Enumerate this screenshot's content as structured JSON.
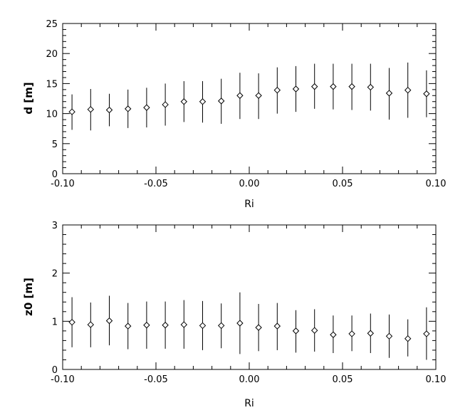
{
  "chart_data": [
    {
      "type": "scatter",
      "marker": "diamond",
      "errorbars": true,
      "xlabel": "Ri",
      "ylabel": "d [m]",
      "xlim": [
        -0.1,
        0.1
      ],
      "ylim": [
        0,
        25
      ],
      "xticks": [
        -0.1,
        -0.05,
        0.0,
        0.05,
        0.1
      ],
      "xtick_labels": [
        "-0.10",
        "-0.05",
        "0.00",
        "0.05",
        "0.10"
      ],
      "yticks": [
        0,
        5,
        10,
        15,
        20,
        25
      ],
      "ytick_labels": [
        "0",
        "5",
        "10",
        "15",
        "20",
        "25"
      ],
      "grid": false,
      "x": [
        -0.095,
        -0.085,
        -0.075,
        -0.065,
        -0.055,
        -0.045,
        -0.035,
        -0.025,
        -0.015,
        -0.005,
        0.005,
        0.015,
        0.025,
        0.035,
        0.045,
        0.055,
        0.065,
        0.075,
        0.085,
        0.095
      ],
      "y": [
        10.3,
        10.7,
        10.6,
        10.8,
        11.0,
        11.5,
        12.0,
        12.0,
        12.1,
        13.0,
        13.0,
        13.9,
        14.1,
        14.5,
        14.5,
        14.5,
        14.4,
        13.4,
        13.9,
        13.3
      ],
      "ylow": [
        7.3,
        7.2,
        7.9,
        7.6,
        7.7,
        8.0,
        8.6,
        8.5,
        8.3,
        9.1,
        9.1,
        10.0,
        10.3,
        10.8,
        10.7,
        10.6,
        10.5,
        9.0,
        9.3,
        9.4
      ],
      "yhigh": [
        13.2,
        14.1,
        13.3,
        14.0,
        14.3,
        15.0,
        15.4,
        15.4,
        15.8,
        16.8,
        16.7,
        17.7,
        17.9,
        18.3,
        18.3,
        18.3,
        18.3,
        17.6,
        18.5,
        17.2
      ]
    },
    {
      "type": "scatter",
      "marker": "diamond",
      "errorbars": true,
      "xlabel": "Ri",
      "ylabel": "z0 [m]",
      "xlim": [
        -0.1,
        0.1
      ],
      "ylim": [
        0,
        3
      ],
      "xticks": [
        -0.1,
        -0.05,
        0.0,
        0.05,
        0.1
      ],
      "xtick_labels": [
        "-0.10",
        "-0.05",
        "0.00",
        "0.05",
        "0.10"
      ],
      "yticks": [
        0,
        1,
        2,
        3
      ],
      "ytick_labels": [
        "0",
        "1",
        "2",
        "3"
      ],
      "grid": false,
      "x": [
        -0.095,
        -0.085,
        -0.075,
        -0.065,
        -0.055,
        -0.045,
        -0.035,
        -0.025,
        -0.015,
        -0.005,
        0.005,
        0.015,
        0.025,
        0.035,
        0.045,
        0.055,
        0.065,
        0.075,
        0.085,
        0.095
      ],
      "y": [
        0.98,
        0.93,
        1.01,
        0.9,
        0.92,
        0.92,
        0.93,
        0.91,
        0.91,
        0.96,
        0.87,
        0.9,
        0.8,
        0.81,
        0.72,
        0.74,
        0.75,
        0.69,
        0.64,
        0.74
      ],
      "ylow": [
        0.46,
        0.46,
        0.5,
        0.42,
        0.43,
        0.43,
        0.43,
        0.4,
        0.44,
        0.32,
        0.38,
        0.4,
        0.35,
        0.37,
        0.34,
        0.38,
        0.34,
        0.24,
        0.27,
        0.2
      ],
      "yhigh": [
        1.5,
        1.39,
        1.53,
        1.38,
        1.41,
        1.41,
        1.44,
        1.42,
        1.37,
        1.6,
        1.36,
        1.38,
        1.23,
        1.25,
        1.12,
        1.12,
        1.16,
        1.14,
        1.04,
        1.29
      ]
    }
  ]
}
